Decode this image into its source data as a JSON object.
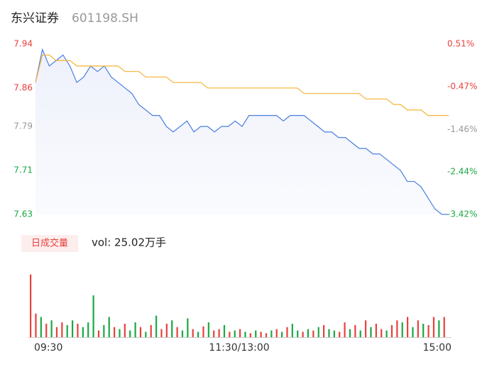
{
  "chart_data": [
    {
      "type": "line",
      "title": "东兴证券",
      "subtitle": "601198.SH",
      "x": [
        0,
        4,
        8,
        12,
        16,
        20,
        24,
        28,
        32,
        36,
        40,
        44,
        48,
        52,
        56,
        60,
        64,
        68,
        72,
        76,
        80,
        84,
        88,
        92,
        96,
        100,
        104,
        108,
        112,
        116,
        120,
        124,
        128,
        132,
        136,
        140,
        144,
        148,
        152,
        156,
        160,
        164,
        168,
        172,
        176,
        180,
        184,
        188,
        192,
        196,
        200,
        204,
        208,
        212,
        216,
        220,
        224,
        228,
        232,
        236,
        240
      ],
      "xlim": [
        0,
        240
      ],
      "series": [
        {
          "color": "#4a7fe0",
          "values": [
            7.87,
            7.93,
            7.9,
            7.91,
            7.92,
            7.9,
            7.87,
            7.88,
            7.9,
            7.89,
            7.9,
            7.88,
            7.87,
            7.86,
            7.85,
            7.83,
            7.82,
            7.81,
            7.81,
            7.79,
            7.78,
            7.79,
            7.8,
            7.78,
            7.79,
            7.79,
            7.78,
            7.79,
            7.79,
            7.8,
            7.79,
            7.81,
            7.81,
            7.81,
            7.81,
            7.81,
            7.8,
            7.81,
            7.81,
            7.81,
            7.8,
            7.79,
            7.78,
            7.78,
            7.77,
            7.77,
            7.76,
            7.75,
            7.75,
            7.74,
            7.74,
            7.73,
            7.72,
            7.71,
            7.69,
            7.69,
            7.68,
            7.66,
            7.64,
            7.63,
            7.63
          ]
        },
        {
          "color": "#f5b335",
          "values": [
            7.87,
            7.92,
            7.92,
            7.91,
            7.91,
            7.91,
            7.9,
            7.9,
            7.9,
            7.9,
            7.9,
            7.9,
            7.9,
            7.89,
            7.89,
            7.89,
            7.88,
            7.88,
            7.88,
            7.88,
            7.87,
            7.87,
            7.87,
            7.87,
            7.87,
            7.86,
            7.86,
            7.86,
            7.86,
            7.86,
            7.86,
            7.86,
            7.86,
            7.86,
            7.86,
            7.86,
            7.86,
            7.86,
            7.86,
            7.85,
            7.85,
            7.85,
            7.85,
            7.85,
            7.85,
            7.85,
            7.85,
            7.85,
            7.84,
            7.84,
            7.84,
            7.84,
            7.83,
            7.83,
            7.82,
            7.82,
            7.82,
            7.81,
            7.81,
            7.81,
            7.81
          ]
        }
      ],
      "ylim": [
        7.63,
        7.94
      ],
      "yticks": [
        7.94,
        7.86,
        7.79,
        7.71,
        7.63
      ],
      "y2lim": [
        -3.42,
        0.51
      ],
      "y2ticks": [
        {
          "value": 0.51,
          "label": "0.51%"
        },
        {
          "value": -0.47,
          "label": "-0.47%"
        },
        {
          "value": -1.46,
          "label": "-1.46%"
        },
        {
          "value": -2.44,
          "label": "-2.44%"
        },
        {
          "value": -3.42,
          "label": "-3.42%"
        }
      ],
      "tick_colors": [
        "#e8413c",
        "#e8413c",
        "#999999",
        "#1aa845",
        "#1aa845"
      ]
    },
    {
      "type": "bar",
      "title": "日成交量",
      "annotation": "vol: 25.02万手",
      "x": [
        0,
        3,
        6,
        9,
        12,
        15,
        18,
        21,
        24,
        27,
        30,
        33,
        36,
        39,
        42,
        45,
        48,
        51,
        54,
        57,
        60,
        63,
        66,
        69,
        72,
        75,
        78,
        81,
        84,
        87,
        90,
        93,
        96,
        99,
        102,
        105,
        108,
        111,
        114,
        117,
        120,
        123,
        126,
        129,
        132,
        135,
        138,
        141,
        144,
        147,
        150,
        153,
        156,
        159,
        162,
        165,
        168,
        171,
        174,
        177,
        180,
        183,
        186,
        189,
        192,
        195,
        198,
        201,
        204,
        207,
        210,
        213,
        216,
        219,
        222,
        225,
        228,
        231,
        234,
        237
      ],
      "xlim": [
        0,
        240
      ],
      "xticks": [
        {
          "value": 0,
          "label": "09:30"
        },
        {
          "value": 120,
          "label": "11:30/13:00"
        },
        {
          "value": 240,
          "label": "15:00"
        }
      ],
      "ylim": [
        0,
        100
      ],
      "values": [
        93,
        35,
        30,
        20,
        25,
        15,
        22,
        18,
        25,
        20,
        15,
        22,
        62,
        10,
        18,
        30,
        15,
        12,
        20,
        10,
        22,
        15,
        8,
        18,
        32,
        12,
        20,
        25,
        15,
        10,
        28,
        12,
        8,
        16,
        22,
        10,
        12,
        18,
        8,
        10,
        12,
        8,
        6,
        10,
        8,
        6,
        10,
        12,
        8,
        15,
        20,
        10,
        8,
        12,
        10,
        15,
        18,
        12,
        10,
        8,
        22,
        12,
        18,
        10,
        25,
        15,
        20,
        12,
        10,
        18,
        25,
        22,
        30,
        15,
        25,
        20,
        18,
        30,
        25,
        30
      ],
      "colors": [
        "#e8413c",
        "#e8413c",
        "#1aa845",
        "#e8413c",
        "#1aa845",
        "#e8413c",
        "#e8413c",
        "#1aa845",
        "#1aa845",
        "#e8413c",
        "#1aa845",
        "#1aa845",
        "#1aa845",
        "#e8413c",
        "#1aa845",
        "#1aa845",
        "#e8413c",
        "#1aa845",
        "#e8413c",
        "#1aa845",
        "#1aa845",
        "#e8413c",
        "#1aa845",
        "#e8413c",
        "#1aa845",
        "#e8413c",
        "#e8413c",
        "#1aa845",
        "#e8413c",
        "#1aa845",
        "#1aa845",
        "#e8413c",
        "#1aa845",
        "#e8413c",
        "#1aa845",
        "#e8413c",
        "#e8413c",
        "#1aa845",
        "#e8413c",
        "#1aa845",
        "#e8413c",
        "#1aa845",
        "#e8413c",
        "#1aa845",
        "#e8413c",
        "#e8413c",
        "#1aa845",
        "#e8413c",
        "#1aa845",
        "#e8413c",
        "#1aa845",
        "#1aa845",
        "#e8413c",
        "#1aa845",
        "#e8413c",
        "#1aa845",
        "#e8413c",
        "#1aa845",
        "#1aa845",
        "#e8413c",
        "#e8413c",
        "#1aa845",
        "#e8413c",
        "#1aa845",
        "#e8413c",
        "#1aa845",
        "#e8413c",
        "#e8413c",
        "#1aa845",
        "#e8413c",
        "#e8413c",
        "#1aa845",
        "#e8413c",
        "#1aa845",
        "#e8413c",
        "#1aa845",
        "#e8413c",
        "#e8413c",
        "#1aa845",
        "#e8413c"
      ]
    }
  ]
}
